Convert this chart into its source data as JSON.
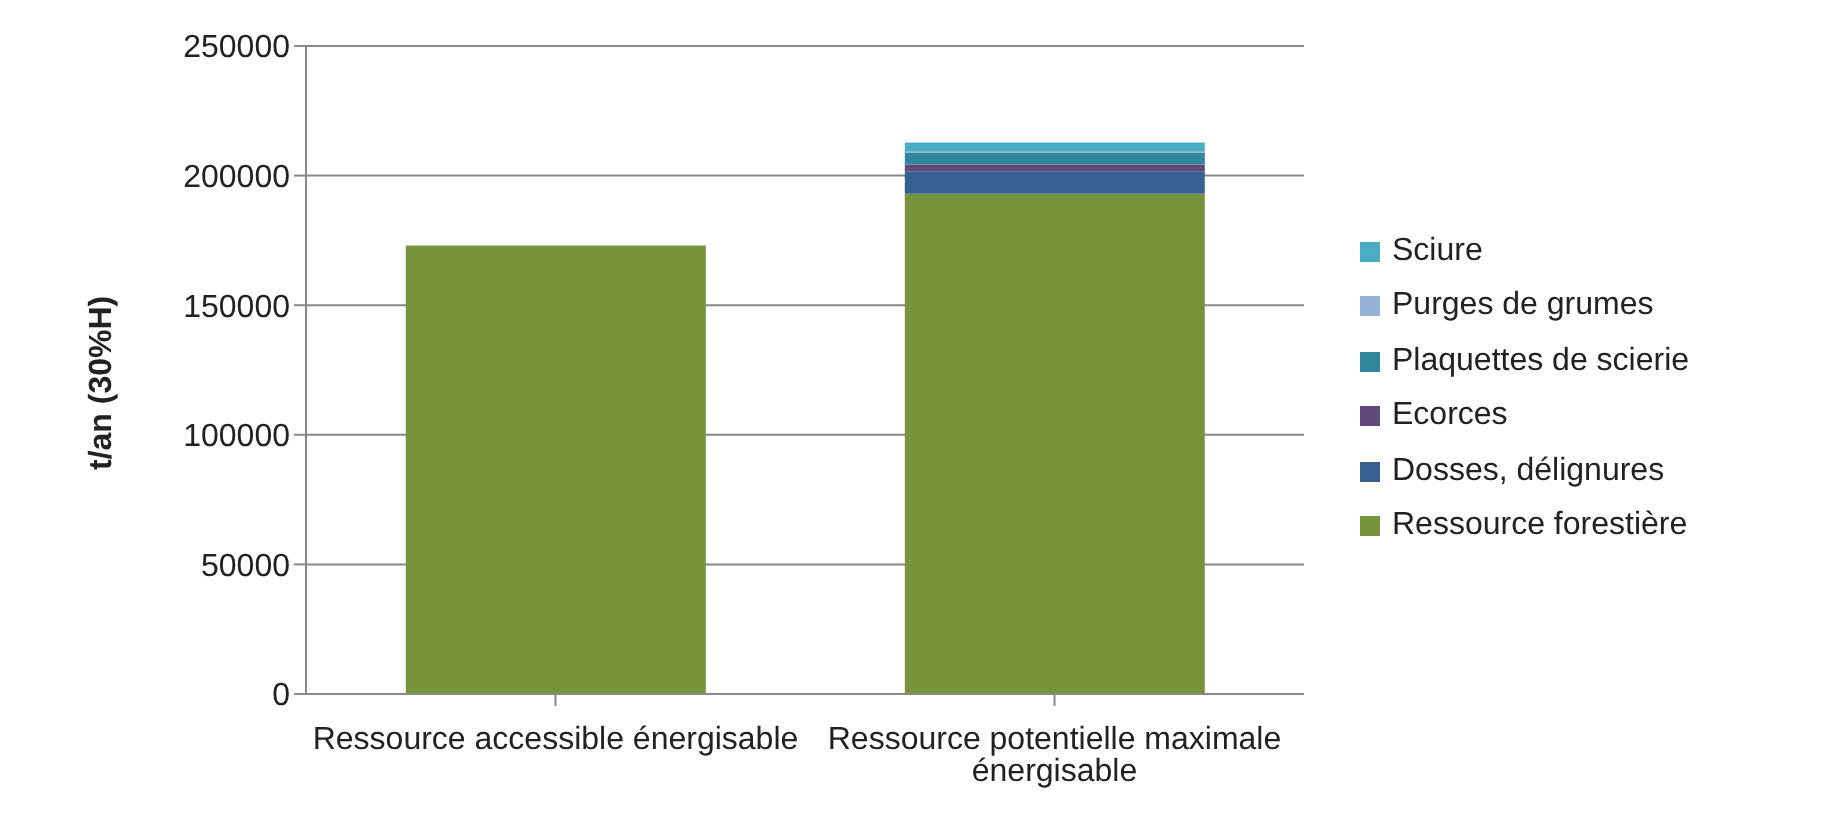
{
  "chart_data": {
    "type": "bar",
    "stacked": true,
    "ylabel": "t/an (30%H)",
    "categories": [
      "Ressource accessible énergisable",
      "Ressource potentielle maximale énergisable"
    ],
    "series": [
      {
        "name": "Ressource forestière",
        "color": "#77933c",
        "values": [
          173000,
          193000
        ]
      },
      {
        "name": "Dosses, délignures",
        "color": "#376092",
        "values": [
          null,
          8700
        ]
      },
      {
        "name": "Ecorces",
        "color": "#604a7b",
        "values": [
          null,
          2600
        ]
      },
      {
        "name": "Plaquettes de scierie",
        "color": "#31859c",
        "values": [
          null,
          4600
        ]
      },
      {
        "name": "Purges de grumes",
        "color": "#95b3d7",
        "values": [
          null,
          300
        ]
      },
      {
        "name": "Sciure",
        "color": "#4bacc6",
        "values": [
          null,
          3600
        ]
      }
    ],
    "ylim": [
      0,
      250000
    ],
    "yticks": [
      0,
      50000,
      100000,
      150000,
      200000,
      250000
    ],
    "grid": "y",
    "legend": "right"
  }
}
